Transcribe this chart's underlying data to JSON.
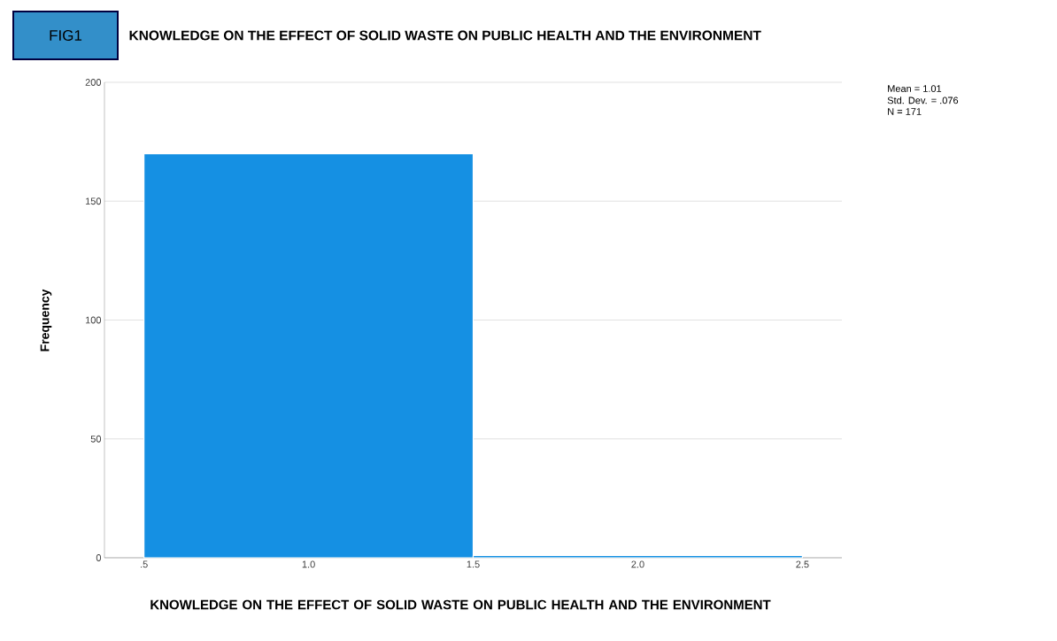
{
  "chart_data": {
    "type": "histogram",
    "title": "KNOWLEDGE ON THE EFFECT OF SOLID WASTE ON PUBLIC HEALTH AND THE ENVIRONMENT",
    "xlabel": "KNOWLEDGE ON THE EFFECT OF SOLID WASTE ON PUBLIC HEALTH AND THE ENVIRONMENT",
    "ylabel": "Frequency",
    "bins": [
      0.5,
      1.5,
      2.5
    ],
    "values": [
      170,
      1
    ],
    "color": "#1590e3",
    "xlim": [
      0.38,
      2.62
    ],
    "xticks": [
      {
        "value": 0.5,
        "label": ".5"
      },
      {
        "value": 1.0,
        "label": "1.0"
      },
      {
        "value": 1.5,
        "label": "1.5"
      },
      {
        "value": 2.0,
        "label": "2.0"
      },
      {
        "value": 2.5,
        "label": "2.5"
      }
    ],
    "ylim": [
      0,
      200
    ],
    "yticks": [
      0,
      50,
      100,
      150,
      200
    ],
    "grid": "y",
    "annotations": [
      "FIG1",
      "Mean = 1.01",
      "Std. Dev. = .076",
      "N = 171"
    ]
  }
}
